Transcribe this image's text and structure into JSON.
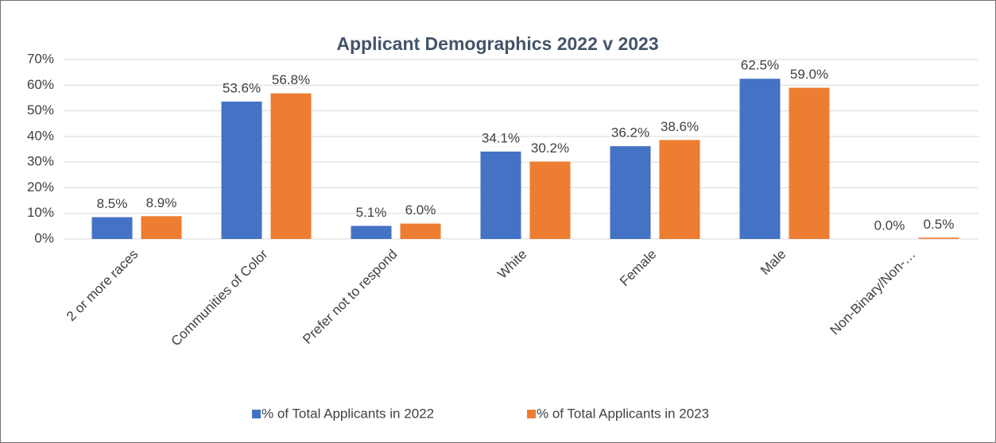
{
  "chart_data": {
    "type": "bar",
    "title": "Applicant Demographics 2022 v 2023",
    "categories": [
      "2 or more races",
      "Communities of Color",
      "Prefer not to respond",
      "White",
      "Female",
      "Male",
      "Non-Binary/Non-…"
    ],
    "series": [
      {
        "name": "% of Total Applicants in 2022",
        "color": "#4472c4",
        "values": [
          8.5,
          53.6,
          5.1,
          34.1,
          36.2,
          62.5,
          0.0
        ],
        "value_labels": [
          "8.5%",
          "53.6%",
          "5.1%",
          "34.1%",
          "36.2%",
          "62.5%",
          "0.0%"
        ]
      },
      {
        "name": "% of Total Applicants in 2023",
        "color": "#ed7d31",
        "values": [
          8.9,
          56.8,
          6.0,
          30.2,
          38.6,
          59.0,
          0.5
        ],
        "value_labels": [
          "8.9%",
          "56.8%",
          "6.0%",
          "30.2%",
          "38.6%",
          "59.0%",
          "0.5%"
        ]
      }
    ],
    "ylim": [
      0,
      70
    ],
    "yticks": [
      {
        "value": 0,
        "label": "0%"
      },
      {
        "value": 10,
        "label": "10%"
      },
      {
        "value": 20,
        "label": "20%"
      },
      {
        "value": 30,
        "label": "30%"
      },
      {
        "value": 40,
        "label": "40%"
      },
      {
        "value": 50,
        "label": "50%"
      },
      {
        "value": 60,
        "label": "60%"
      },
      {
        "value": 70,
        "label": "70%"
      }
    ],
    "grid": true,
    "legend": "bottom"
  }
}
